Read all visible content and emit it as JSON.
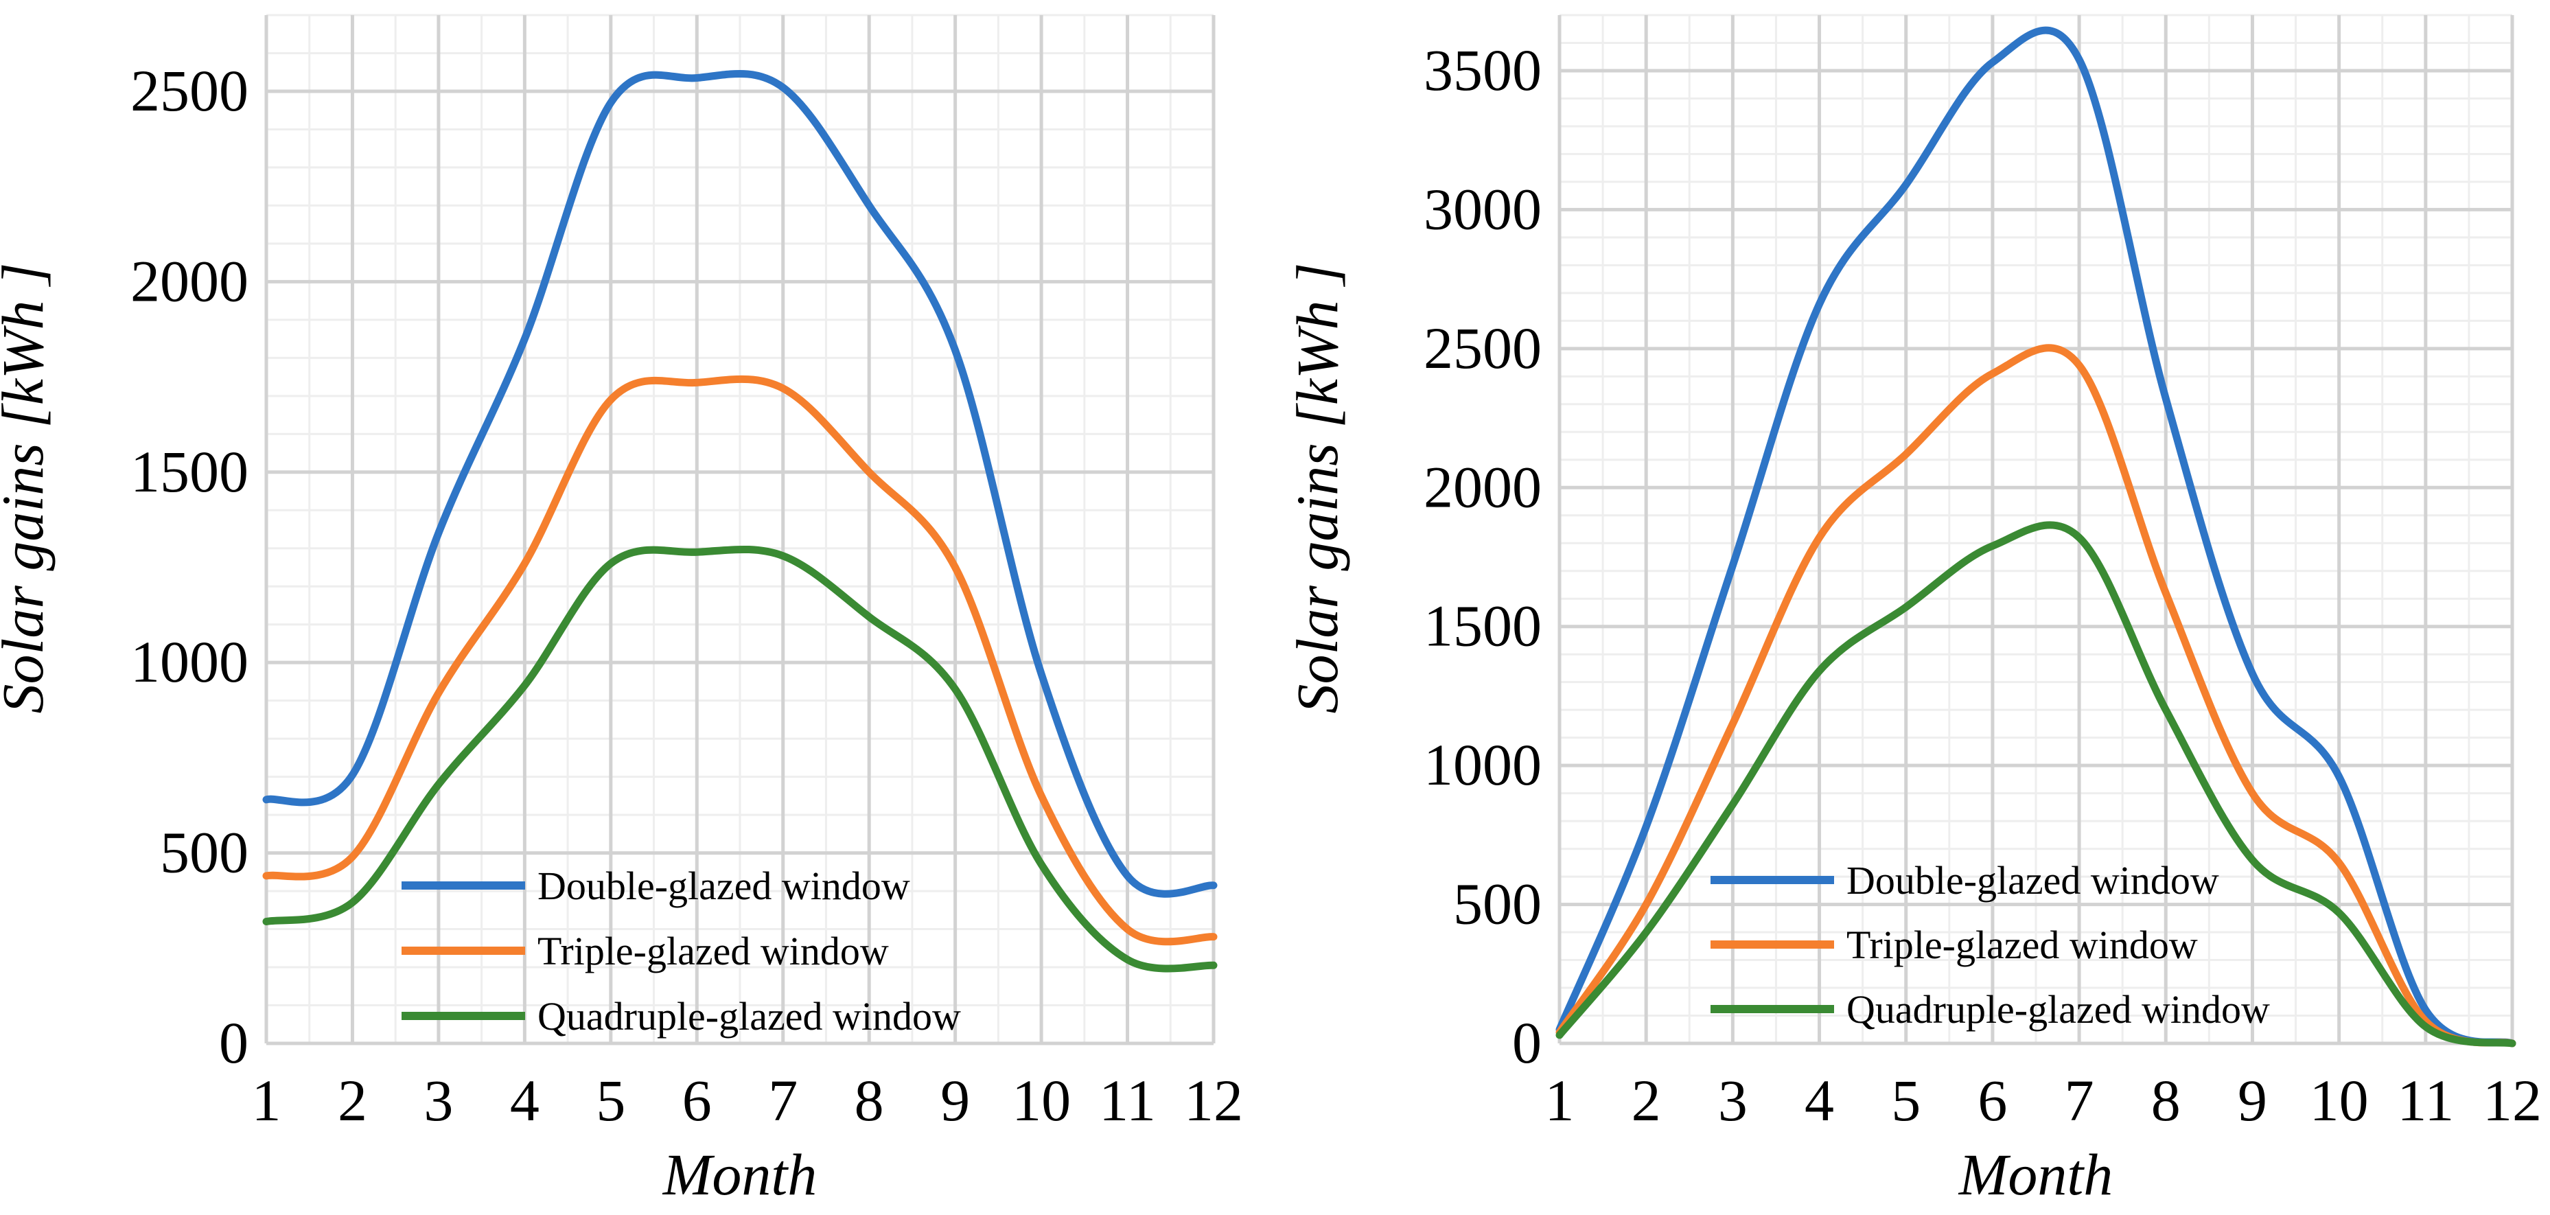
{
  "chart_data": [
    {
      "type": "line",
      "title": "",
      "xlabel": "Month",
      "ylabel": "Solar gains [kWh ]",
      "x": [
        1,
        2,
        3,
        4,
        5,
        6,
        7,
        8,
        9,
        10,
        11,
        12
      ],
      "x_ticks": [
        "1",
        "2",
        "3",
        "4",
        "5",
        "6",
        "7",
        "8",
        "9",
        "10",
        "11",
        "12"
      ],
      "xlim": [
        1,
        12
      ],
      "ylim": [
        0,
        2700
      ],
      "y_ticks": [
        "0",
        "500",
        "1000",
        "1500",
        "2000",
        "2500"
      ],
      "y_tick_values": [
        0,
        500,
        1000,
        1500,
        2000,
        2500
      ],
      "y_minor_step": 100,
      "grid": true,
      "legend_position": "bottom-center",
      "series": [
        {
          "name": "Double-glazed window",
          "color": "#2E75C6",
          "values": [
            640,
            705,
            1340,
            1850,
            2470,
            2535,
            2510,
            2200,
            1820,
            970,
            440,
            415
          ]
        },
        {
          "name": "Triple-glazed window",
          "color": "#F57F2D",
          "values": [
            440,
            490,
            920,
            1260,
            1690,
            1735,
            1720,
            1500,
            1250,
            650,
            300,
            280
          ]
        },
        {
          "name": "Quadruple-glazed window",
          "color": "#3A8A33",
          "values": [
            320,
            370,
            680,
            940,
            1260,
            1290,
            1280,
            1120,
            930,
            470,
            220,
            205
          ]
        }
      ]
    },
    {
      "type": "line",
      "title": "",
      "xlabel": "Month",
      "ylabel": "Solar gains [kWh ]",
      "x": [
        1,
        2,
        3,
        4,
        5,
        6,
        7,
        8,
        9,
        10,
        11,
        12
      ],
      "x_ticks": [
        "1",
        "2",
        "3",
        "4",
        "5",
        "6",
        "7",
        "8",
        "9",
        "10",
        "11",
        "12"
      ],
      "xlim": [
        1,
        12
      ],
      "ylim": [
        0,
        3700
      ],
      "y_ticks": [
        "0",
        "500",
        "1000",
        "1500",
        "2000",
        "2500",
        "3000",
        "3500"
      ],
      "y_tick_values": [
        0,
        500,
        1000,
        1500,
        2000,
        2500,
        3000,
        3500
      ],
      "y_minor_step": 100,
      "grid": true,
      "legend_position": "bottom-center",
      "series": [
        {
          "name": "Double-glazed window",
          "color": "#2E75C6",
          "values": [
            50,
            780,
            1720,
            2660,
            3090,
            3530,
            3540,
            2320,
            1330,
            960,
            120,
            0
          ]
        },
        {
          "name": "Triple-glazed window",
          "color": "#F57F2D",
          "values": [
            40,
            500,
            1150,
            1820,
            2120,
            2410,
            2440,
            1620,
            900,
            650,
            80,
            0
          ]
        },
        {
          "name": "Quadruple-glazed window",
          "color": "#3A8A33",
          "values": [
            30,
            400,
            860,
            1340,
            1570,
            1790,
            1820,
            1200,
            660,
            470,
            60,
            0
          ]
        }
      ]
    }
  ]
}
